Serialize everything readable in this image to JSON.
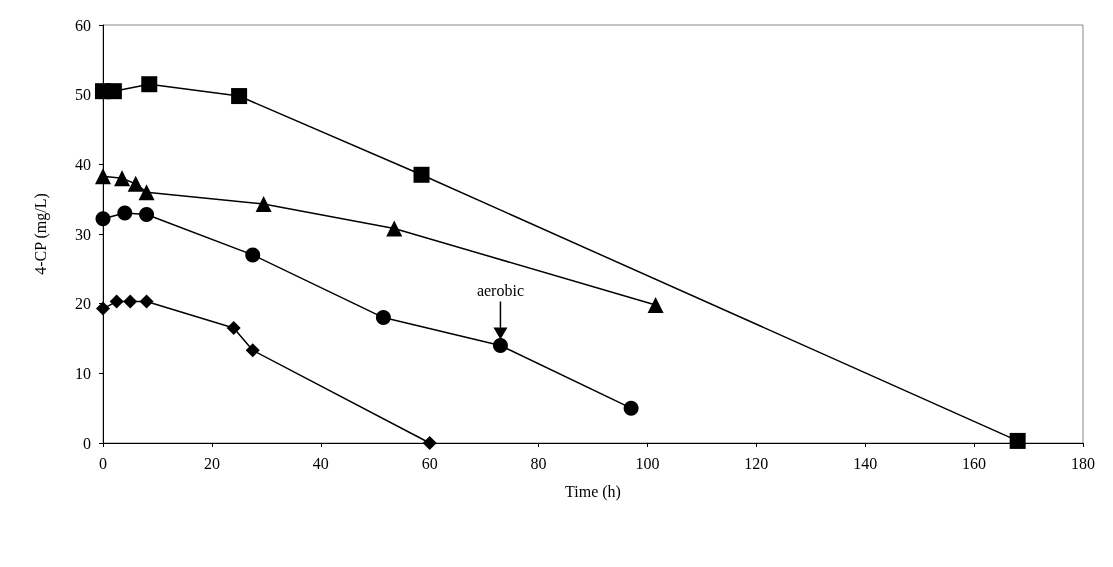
{
  "chart_data": {
    "type": "line",
    "xlabel": "Time (h)",
    "ylabel": "4-CP (mg/L)",
    "xlim": [
      0,
      180
    ],
    "xticks": [
      0,
      20,
      40,
      60,
      80,
      100,
      120,
      140,
      160,
      180
    ],
    "ylim": [
      0,
      60
    ],
    "yticks": [
      0,
      10,
      20,
      30,
      40,
      50,
      60
    ],
    "grid": false,
    "annotations": [
      {
        "text": "aerobic",
        "x": 73,
        "y": 14
      }
    ],
    "series": [
      {
        "color": "#000000",
        "marker": "square",
        "x": [
          0,
          2,
          8.5,
          25,
          58.5,
          168
        ],
        "values": [
          50.5,
          50.5,
          51.5,
          49.8,
          38.5,
          0.3
        ]
      },
      {
        "color": "#000000",
        "marker": "triangle",
        "x": [
          0,
          3.5,
          6,
          8,
          29.5,
          53.5,
          101.5
        ],
        "values": [
          38.3,
          38,
          37.2,
          36,
          34.3,
          30.8,
          19.8
        ]
      },
      {
        "color": "#000000",
        "marker": "circle",
        "x": [
          0,
          4,
          8,
          27.5,
          51.5,
          73,
          97
        ],
        "values": [
          32.2,
          33,
          32.8,
          27,
          18,
          14,
          5
        ]
      },
      {
        "color": "#000000",
        "marker": "diamond",
        "x": [
          0,
          2.5,
          5,
          8,
          24,
          27.5,
          60
        ],
        "values": [
          19.3,
          20.3,
          20.3,
          20.3,
          16.5,
          13.3,
          0
        ]
      }
    ]
  }
}
